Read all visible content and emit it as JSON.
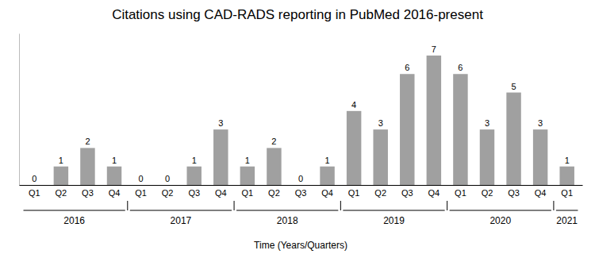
{
  "chart_data": {
    "type": "bar",
    "title": "Citations using CAD-RADS reporting in PubMed 2016-present",
    "xlabel": "Time (Years/Quarters)",
    "categories": [
      "Q1",
      "Q2",
      "Q3",
      "Q4",
      "Q1",
      "Q2",
      "Q3",
      "Q4",
      "Q1",
      "Q2",
      "Q3",
      "Q4",
      "Q1",
      "Q2",
      "Q3",
      "Q4",
      "Q1",
      "Q2",
      "Q3",
      "Q4",
      "Q1"
    ],
    "category_groups": [
      "2016",
      "2016",
      "2016",
      "2016",
      "2017",
      "2017",
      "2017",
      "2017",
      "2018",
      "2018",
      "2018",
      "2018",
      "2019",
      "2019",
      "2019",
      "2019",
      "2020",
      "2020",
      "2020",
      "2020",
      "2021"
    ],
    "values": [
      0,
      1,
      2,
      1,
      0,
      0,
      1,
      3,
      1,
      2,
      0,
      1,
      4,
      3,
      6,
      7,
      6,
      3,
      5,
      3,
      1
    ],
    "color": "#A0A0A0",
    "ylim": [
      0,
      8.2
    ],
    "data_labels": true,
    "tick_labels": "x",
    "grid": false
  }
}
